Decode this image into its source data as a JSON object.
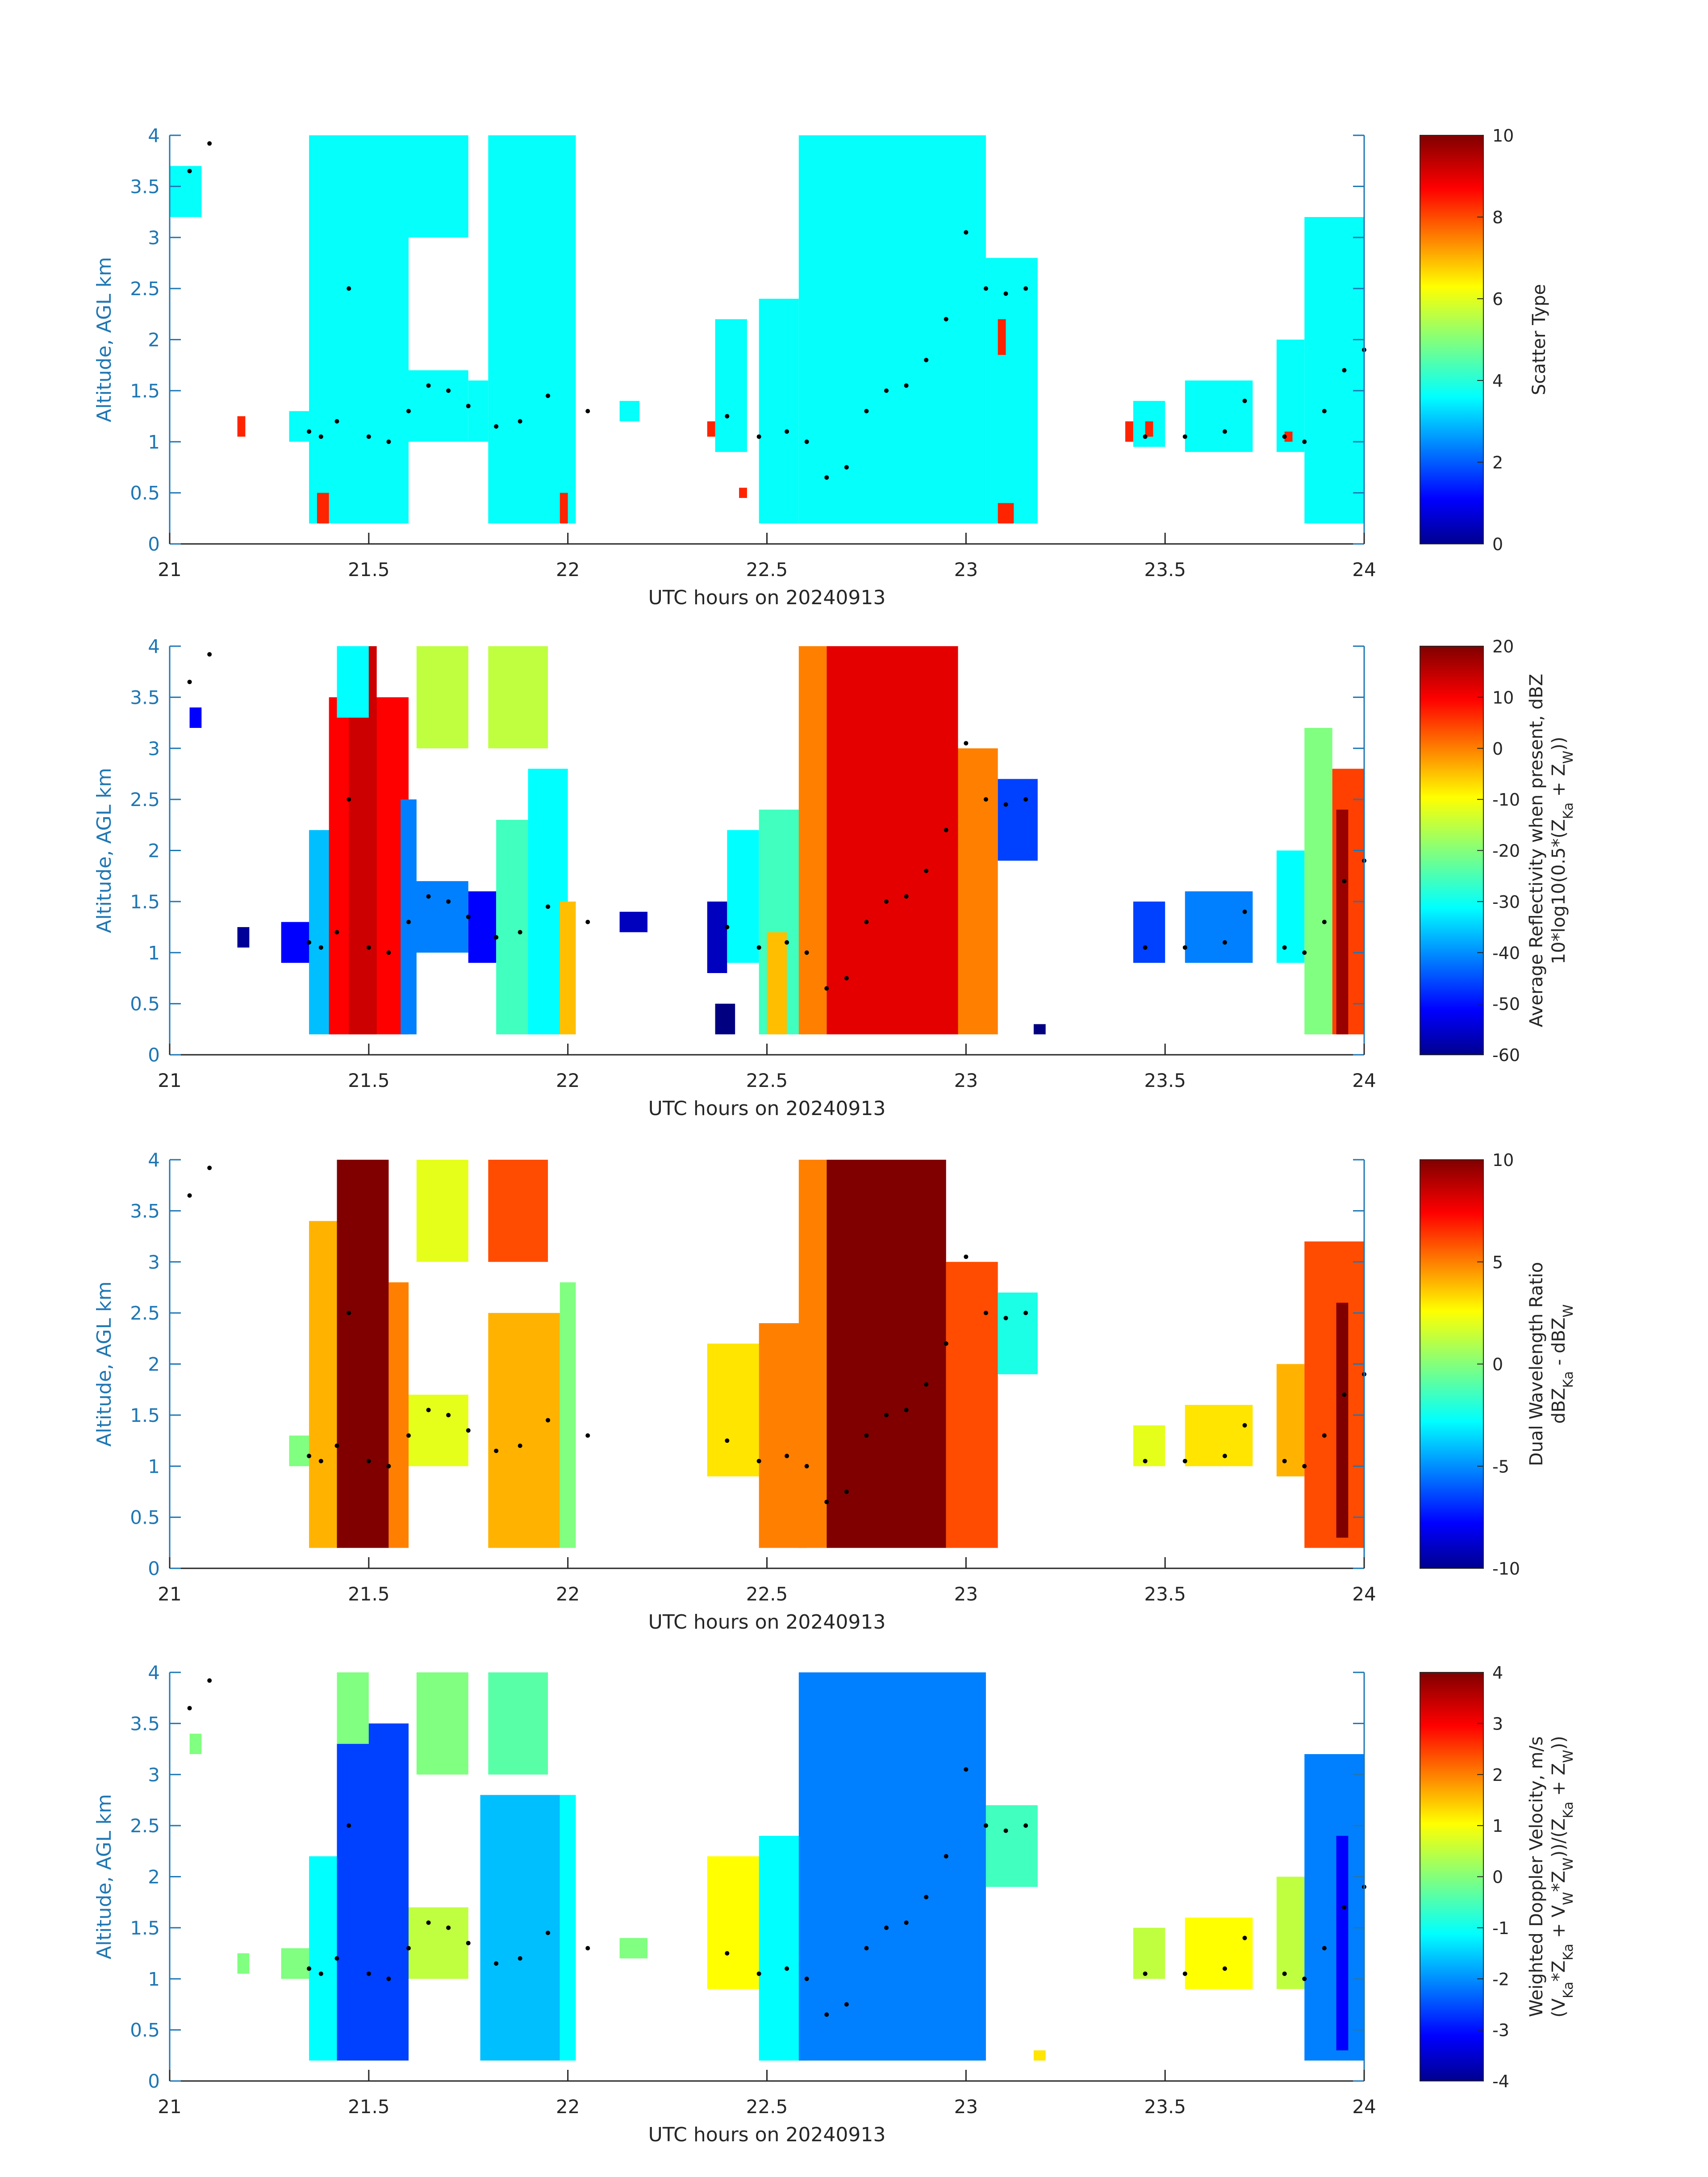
{
  "colors": {
    "axis": "#1f77b4",
    "text_dark": "#262626",
    "marker": "#000000",
    "jet_stops": [
      "#00008f",
      "#0000ff",
      "#00ffff",
      "#ffff00",
      "#ff0000",
      "#800000"
    ]
  },
  "chart_data": [
    {
      "type": "heatmap",
      "panel": 1,
      "xlabel": "UTC hours on 20240913",
      "ylabel": "Altitude, AGL km",
      "xlim": [
        21,
        24
      ],
      "ylim": [
        0,
        4
      ],
      "xticks": [
        "21",
        "21.5",
        "22",
        "22.5",
        "23",
        "23.5",
        "24"
      ],
      "yticks": [
        "0",
        "0.5",
        "1",
        "1.5",
        "2",
        "2.5",
        "3",
        "3.5",
        "4"
      ],
      "colorbar": {
        "label_lines": [
          "Scatter Type"
        ],
        "min": 0,
        "max": 10,
        "ticks": [
          "0",
          "2",
          "4",
          "6",
          "8",
          "10"
        ]
      },
      "fields": [
        {
          "x0": 21.0,
          "x1": 21.08,
          "y0": 3.2,
          "y1": 3.7,
          "v": 3.8
        },
        {
          "x0": 21.35,
          "x1": 21.6,
          "y0": 0.2,
          "y1": 4.0,
          "v": 3.8
        },
        {
          "x0": 21.3,
          "x1": 21.35,
          "y0": 1.0,
          "y1": 1.3,
          "v": 3.8
        },
        {
          "x0": 21.6,
          "x1": 21.75,
          "y0": 1.0,
          "y1": 1.7,
          "v": 3.8
        },
        {
          "x0": 21.6,
          "x1": 21.75,
          "y0": 3.0,
          "y1": 4.0,
          "v": 3.8
        },
        {
          "x0": 21.75,
          "x1": 21.8,
          "y0": 1.0,
          "y1": 1.6,
          "v": 3.8
        },
        {
          "x0": 21.8,
          "x1": 22.02,
          "y0": 0.2,
          "y1": 4.0,
          "v": 3.8
        },
        {
          "x0": 22.13,
          "x1": 22.18,
          "y0": 1.2,
          "y1": 1.4,
          "v": 3.8
        },
        {
          "x0": 22.37,
          "x1": 22.45,
          "y0": 0.9,
          "y1": 2.2,
          "v": 3.8
        },
        {
          "x0": 22.48,
          "x1": 22.58,
          "y0": 0.2,
          "y1": 2.4,
          "v": 3.8
        },
        {
          "x0": 22.58,
          "x1": 23.05,
          "y0": 0.2,
          "y1": 4.0,
          "v": 3.8
        },
        {
          "x0": 23.05,
          "x1": 23.18,
          "y0": 0.2,
          "y1": 2.8,
          "v": 3.8
        },
        {
          "x0": 23.42,
          "x1": 23.5,
          "y0": 0.95,
          "y1": 1.4,
          "v": 3.8
        },
        {
          "x0": 23.55,
          "x1": 23.72,
          "y0": 0.9,
          "y1": 1.6,
          "v": 3.8
        },
        {
          "x0": 23.78,
          "x1": 23.85,
          "y0": 0.9,
          "y1": 2.0,
          "v": 3.8
        },
        {
          "x0": 23.85,
          "x1": 24.0,
          "y0": 0.2,
          "y1": 3.2,
          "v": 3.8
        },
        {
          "x0": 21.17,
          "x1": 21.19,
          "y0": 1.05,
          "y1": 1.25,
          "v": 8.4
        },
        {
          "x0": 21.37,
          "x1": 21.4,
          "y0": 0.2,
          "y1": 0.5,
          "v": 8.4
        },
        {
          "x0": 21.98,
          "x1": 22.0,
          "y0": 0.2,
          "y1": 0.5,
          "v": 8.4
        },
        {
          "x0": 22.35,
          "x1": 22.37,
          "y0": 1.05,
          "y1": 1.2,
          "v": 8.4
        },
        {
          "x0": 22.43,
          "x1": 22.45,
          "y0": 0.45,
          "y1": 0.55,
          "v": 8.4
        },
        {
          "x0": 23.08,
          "x1": 23.1,
          "y0": 1.85,
          "y1": 2.2,
          "v": 8.4
        },
        {
          "x0": 23.08,
          "x1": 23.12,
          "y0": 0.2,
          "y1": 0.4,
          "v": 8.4
        },
        {
          "x0": 23.4,
          "x1": 23.42,
          "y0": 1.0,
          "y1": 1.2,
          "v": 8.4
        },
        {
          "x0": 23.45,
          "x1": 23.47,
          "y0": 1.05,
          "y1": 1.2,
          "v": 8.4
        },
        {
          "x0": 23.8,
          "x1": 23.82,
          "y0": 1.0,
          "y1": 1.1,
          "v": 8.4
        }
      ]
    },
    {
      "type": "heatmap",
      "panel": 2,
      "xlabel": "UTC hours on 20240913",
      "ylabel": "Altitude, AGL km",
      "xlim": [
        21,
        24
      ],
      "ylim": [
        0,
        4
      ],
      "xticks": [
        "21",
        "21.5",
        "22",
        "22.5",
        "23",
        "23.5",
        "24"
      ],
      "yticks": [
        "0",
        "0.5",
        "1",
        "1.5",
        "2",
        "2.5",
        "3",
        "3.5",
        "4"
      ],
      "colorbar": {
        "label_lines": [
          "Average Reflectivity when present, dBZ",
          "10*log10(0.5*(Z",
          "Ka",
          " + Z",
          "W",
          "))"
        ],
        "min": -60,
        "max": 20,
        "ticks": [
          "-60",
          "-50",
          "-40",
          "-30",
          "-20",
          "-10",
          "0",
          "10",
          "20"
        ]
      },
      "fields": [
        {
          "x0": 21.05,
          "x1": 21.08,
          "y0": 3.2,
          "y1": 3.4,
          "v": -50
        },
        {
          "x0": 21.17,
          "x1": 21.2,
          "y0": 1.05,
          "y1": 1.25,
          "v": -58
        },
        {
          "x0": 21.28,
          "x1": 21.4,
          "y0": 0.9,
          "y1": 1.3,
          "v": -50
        },
        {
          "x0": 21.35,
          "x1": 21.42,
          "y0": 0.2,
          "y1": 2.2,
          "v": -35
        },
        {
          "x0": 21.4,
          "x1": 21.6,
          "y0": 0.2,
          "y1": 3.5,
          "v": 10
        },
        {
          "x0": 21.45,
          "x1": 21.52,
          "y0": 0.2,
          "y1": 4.0,
          "v": 14
        },
        {
          "x0": 21.42,
          "x1": 21.5,
          "y0": 3.3,
          "y1": 4.0,
          "v": -30
        },
        {
          "x0": 21.58,
          "x1": 21.62,
          "y0": 0.2,
          "y1": 2.5,
          "v": -40
        },
        {
          "x0": 21.6,
          "x1": 21.75,
          "y0": 1.0,
          "y1": 1.7,
          "v": -40
        },
        {
          "x0": 21.62,
          "x1": 21.75,
          "y0": 3.0,
          "y1": 4.0,
          "v": -15
        },
        {
          "x0": 21.75,
          "x1": 21.82,
          "y0": 0.9,
          "y1": 1.6,
          "v": -50
        },
        {
          "x0": 21.82,
          "x1": 21.9,
          "y0": 0.2,
          "y1": 2.3,
          "v": -25
        },
        {
          "x0": 21.9,
          "x1": 22.0,
          "y0": 0.2,
          "y1": 2.8,
          "v": -30
        },
        {
          "x0": 21.8,
          "x1": 21.95,
          "y0": 3.0,
          "y1": 4.0,
          "v": -15
        },
        {
          "x0": 21.98,
          "x1": 22.02,
          "y0": 0.2,
          "y1": 1.5,
          "v": -5
        },
        {
          "x0": 22.13,
          "x1": 22.2,
          "y0": 1.2,
          "y1": 1.4,
          "v": -55
        },
        {
          "x0": 22.35,
          "x1": 22.4,
          "y0": 0.8,
          "y1": 1.5,
          "v": -55
        },
        {
          "x0": 22.37,
          "x1": 22.42,
          "y0": 0.2,
          "y1": 0.5,
          "v": -60
        },
        {
          "x0": 22.4,
          "x1": 22.48,
          "y0": 0.9,
          "y1": 2.2,
          "v": -30
        },
        {
          "x0": 22.48,
          "x1": 22.6,
          "y0": 0.2,
          "y1": 2.4,
          "v": -25
        },
        {
          "x0": 22.5,
          "x1": 22.55,
          "y0": 0.2,
          "y1": 1.2,
          "v": -5
        },
        {
          "x0": 22.58,
          "x1": 22.65,
          "y0": 0.2,
          "y1": 4.0,
          "v": 0
        },
        {
          "x0": 22.65,
          "x1": 22.98,
          "y0": 0.2,
          "y1": 4.0,
          "v": 12
        },
        {
          "x0": 22.98,
          "x1": 23.08,
          "y0": 0.2,
          "y1": 3.0,
          "v": 0
        },
        {
          "x0": 23.08,
          "x1": 23.18,
          "y0": 1.9,
          "y1": 2.7,
          "v": -45
        },
        {
          "x0": 23.17,
          "x1": 23.2,
          "y0": 0.2,
          "y1": 0.3,
          "v": -60
        },
        {
          "x0": 23.42,
          "x1": 23.5,
          "y0": 0.9,
          "y1": 1.5,
          "v": -45
        },
        {
          "x0": 23.55,
          "x1": 23.72,
          "y0": 0.9,
          "y1": 1.6,
          "v": -40
        },
        {
          "x0": 23.78,
          "x1": 23.85,
          "y0": 0.9,
          "y1": 2.0,
          "v": -30
        },
        {
          "x0": 23.85,
          "x1": 23.92,
          "y0": 0.2,
          "y1": 3.2,
          "v": -20
        },
        {
          "x0": 23.92,
          "x1": 24.0,
          "y0": 0.2,
          "y1": 2.8,
          "v": 5
        },
        {
          "x0": 23.93,
          "x1": 23.96,
          "y0": 0.2,
          "y1": 2.4,
          "v": 18
        }
      ]
    },
    {
      "type": "heatmap",
      "panel": 3,
      "xlabel": "UTC hours on 20240913",
      "ylabel": "Altitude, AGL km",
      "xlim": [
        21,
        24
      ],
      "ylim": [
        0,
        4
      ],
      "xticks": [
        "21",
        "21.5",
        "22",
        "22.5",
        "23",
        "23.5",
        "24"
      ],
      "yticks": [
        "0",
        "0.5",
        "1",
        "1.5",
        "2",
        "2.5",
        "3",
        "3.5",
        "4"
      ],
      "colorbar": {
        "label_lines": [
          "Dual Wavelength Ratio",
          "dBZ",
          "Ka",
          " - dBZ",
          "W"
        ],
        "min": -10,
        "max": 10,
        "ticks": [
          "-10",
          "-5",
          "0",
          "5",
          "10"
        ]
      },
      "fields": [
        {
          "x0": 21.3,
          "x1": 21.35,
          "y0": 1.0,
          "y1": 1.3,
          "v": 0
        },
        {
          "x0": 21.35,
          "x1": 21.42,
          "y0": 0.2,
          "y1": 3.4,
          "v": 4
        },
        {
          "x0": 21.42,
          "x1": 21.55,
          "y0": 0.2,
          "y1": 4.0,
          "v": 10
        },
        {
          "x0": 21.55,
          "x1": 21.6,
          "y0": 0.2,
          "y1": 2.8,
          "v": 5
        },
        {
          "x0": 21.6,
          "x1": 21.75,
          "y0": 1.0,
          "y1": 1.7,
          "v": 2
        },
        {
          "x0": 21.62,
          "x1": 21.75,
          "y0": 3.0,
          "y1": 4.0,
          "v": 2
        },
        {
          "x0": 21.8,
          "x1": 21.98,
          "y0": 0.2,
          "y1": 2.5,
          "v": 4
        },
        {
          "x0": 21.8,
          "x1": 21.95,
          "y0": 3.0,
          "y1": 4.0,
          "v": 6
        },
        {
          "x0": 21.98,
          "x1": 22.02,
          "y0": 0.2,
          "y1": 2.8,
          "v": 0
        },
        {
          "x0": 22.35,
          "x1": 22.48,
          "y0": 0.9,
          "y1": 2.2,
          "v": 3
        },
        {
          "x0": 22.48,
          "x1": 22.6,
          "y0": 0.2,
          "y1": 2.4,
          "v": 5
        },
        {
          "x0": 22.58,
          "x1": 22.65,
          "y0": 0.2,
          "y1": 4.0,
          "v": 5
        },
        {
          "x0": 22.65,
          "x1": 22.95,
          "y0": 0.2,
          "y1": 4.0,
          "v": 10
        },
        {
          "x0": 22.95,
          "x1": 23.08,
          "y0": 0.2,
          "y1": 3.0,
          "v": 6
        },
        {
          "x0": 23.08,
          "x1": 23.18,
          "y0": 1.9,
          "y1": 2.7,
          "v": -2
        },
        {
          "x0": 23.42,
          "x1": 23.5,
          "y0": 1.0,
          "y1": 1.4,
          "v": 2
        },
        {
          "x0": 23.55,
          "x1": 23.72,
          "y0": 1.0,
          "y1": 1.6,
          "v": 3
        },
        {
          "x0": 23.78,
          "x1": 23.85,
          "y0": 0.9,
          "y1": 2.0,
          "v": 4
        },
        {
          "x0": 23.85,
          "x1": 24.0,
          "y0": 0.2,
          "y1": 3.2,
          "v": 6
        },
        {
          "x0": 23.93,
          "x1": 23.96,
          "y0": 0.3,
          "y1": 2.6,
          "v": 10
        }
      ]
    },
    {
      "type": "heatmap",
      "panel": 4,
      "xlabel": "UTC hours on 20240913",
      "ylabel": "Altitude, AGL km",
      "xlim": [
        21,
        24
      ],
      "ylim": [
        0,
        4
      ],
      "xticks": [
        "21",
        "21.5",
        "22",
        "22.5",
        "23",
        "23.5",
        "24"
      ],
      "yticks": [
        "0",
        "0.5",
        "1",
        "1.5",
        "2",
        "2.5",
        "3",
        "3.5",
        "4"
      ],
      "colorbar": {
        "label_lines": [
          "Weighted Doppler Velocity, m/s",
          "(V",
          "Ka",
          "*Z",
          "Ka",
          " + V",
          "W",
          "*Z",
          "W",
          "))/(Z",
          "Ka",
          " + Z",
          "W",
          "))"
        ],
        "min": -4,
        "max": 4,
        "ticks": [
          "-4",
          "-3",
          "-2",
          "-1",
          "0",
          "1",
          "2",
          "3",
          "4"
        ]
      },
      "fields": [
        {
          "x0": 21.05,
          "x1": 21.08,
          "y0": 3.2,
          "y1": 3.4,
          "v": 0
        },
        {
          "x0": 21.17,
          "x1": 21.2,
          "y0": 1.05,
          "y1": 1.25,
          "v": 0
        },
        {
          "x0": 21.28,
          "x1": 21.35,
          "y0": 1.0,
          "y1": 1.3,
          "v": 0
        },
        {
          "x0": 21.35,
          "x1": 21.42,
          "y0": 0.2,
          "y1": 2.2,
          "v": -1
        },
        {
          "x0": 21.42,
          "x1": 21.6,
          "y0": 0.2,
          "y1": 3.5,
          "v": -2.5
        },
        {
          "x0": 21.42,
          "x1": 21.5,
          "y0": 3.3,
          "y1": 4.0,
          "v": 0
        },
        {
          "x0": 21.6,
          "x1": 21.75,
          "y0": 1.0,
          "y1": 1.7,
          "v": 0.5
        },
        {
          "x0": 21.62,
          "x1": 21.75,
          "y0": 3.0,
          "y1": 4.0,
          "v": 0
        },
        {
          "x0": 21.78,
          "x1": 21.98,
          "y0": 0.2,
          "y1": 2.8,
          "v": -1.5
        },
        {
          "x0": 21.8,
          "x1": 21.95,
          "y0": 3.0,
          "y1": 4.0,
          "v": -0.3
        },
        {
          "x0": 21.98,
          "x1": 22.02,
          "y0": 0.2,
          "y1": 2.8,
          "v": -1
        },
        {
          "x0": 22.13,
          "x1": 22.2,
          "y0": 1.2,
          "y1": 1.4,
          "v": 0
        },
        {
          "x0": 22.35,
          "x1": 22.48,
          "y0": 0.9,
          "y1": 2.2,
          "v": 1
        },
        {
          "x0": 22.48,
          "x1": 22.6,
          "y0": 0.2,
          "y1": 2.4,
          "v": -1
        },
        {
          "x0": 22.58,
          "x1": 23.05,
          "y0": 0.2,
          "y1": 4.0,
          "v": -2
        },
        {
          "x0": 23.05,
          "x1": 23.18,
          "y0": 1.9,
          "y1": 2.7,
          "v": -0.5
        },
        {
          "x0": 23.17,
          "x1": 23.2,
          "y0": 0.2,
          "y1": 0.3,
          "v": 1.2
        },
        {
          "x0": 23.42,
          "x1": 23.5,
          "y0": 1.0,
          "y1": 1.5,
          "v": 0.5
        },
        {
          "x0": 23.55,
          "x1": 23.72,
          "y0": 0.9,
          "y1": 1.6,
          "v": 1
        },
        {
          "x0": 23.78,
          "x1": 23.85,
          "y0": 0.9,
          "y1": 2.0,
          "v": 0.5
        },
        {
          "x0": 23.85,
          "x1": 24.0,
          "y0": 0.2,
          "y1": 3.2,
          "v": -2
        },
        {
          "x0": 23.93,
          "x1": 23.96,
          "y0": 0.3,
          "y1": 2.4,
          "v": -3
        }
      ]
    }
  ],
  "marker_track": {
    "hours": [
      21.05,
      21.1,
      21.35,
      21.38,
      21.42,
      21.45,
      21.5,
      21.55,
      21.6,
      21.65,
      21.7,
      21.75,
      21.82,
      21.88,
      21.95,
      22.05,
      22.4,
      22.48,
      22.55,
      22.6,
      22.65,
      22.7,
      22.75,
      22.8,
      22.85,
      22.9,
      22.95,
      23.0,
      23.05,
      23.1,
      23.15,
      23.45,
      23.55,
      23.65,
      23.7,
      23.8,
      23.85,
      23.9,
      23.95,
      24.0
    ],
    "altitude_km": [
      3.65,
      3.92,
      1.1,
      1.05,
      1.2,
      2.5,
      1.05,
      1.0,
      1.3,
      1.55,
      1.5,
      1.35,
      1.15,
      1.2,
      1.45,
      1.3,
      1.25,
      1.05,
      1.1,
      1.0,
      0.65,
      0.75,
      1.3,
      1.5,
      1.55,
      1.8,
      2.2,
      3.05,
      2.5,
      2.45,
      2.5,
      1.05,
      1.05,
      1.1,
      1.4,
      1.05,
      1.0,
      1.3,
      1.7,
      1.9
    ]
  }
}
